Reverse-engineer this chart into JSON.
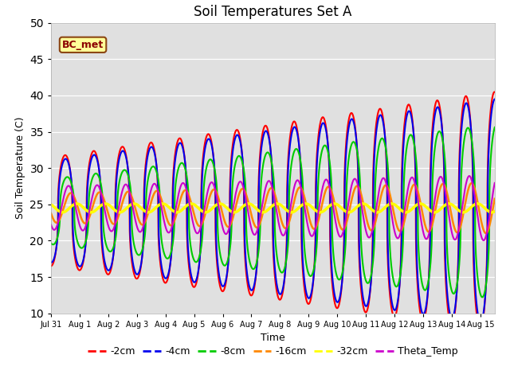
{
  "title": "Soil Temperatures Set A",
  "xlabel": "Time",
  "ylabel": "Soil Temperature (C)",
  "ylim": [
    10,
    50
  ],
  "xlim": [
    0,
    15.5
  ],
  "bg_color": "#e0e0e0",
  "annotation_text": "BC_met",
  "annotation_facecolor": "#ffff99",
  "annotation_edgecolor": "#8B4513",
  "annotation_textcolor": "#8B0000",
  "tick_labels": [
    "Jul 31",
    "Aug 1",
    "Aug 2",
    "Aug 3",
    "Aug 4",
    "Aug 5",
    "Aug 6",
    "Aug 7",
    "Aug 8",
    "Aug 9",
    "Aug 10",
    "Aug 11",
    "Aug 12",
    "Aug 13",
    "Aug 14",
    "Aug 15"
  ],
  "tick_positions": [
    0,
    1,
    2,
    3,
    4,
    5,
    6,
    7,
    8,
    9,
    10,
    11,
    12,
    13,
    14,
    15
  ],
  "series": [
    {
      "label": "-2cm",
      "color": "#ff0000",
      "lw": 1.5
    },
    {
      "label": "-4cm",
      "color": "#0000ee",
      "lw": 1.5
    },
    {
      "label": "-8cm",
      "color": "#00cc00",
      "lw": 1.5
    },
    {
      "label": "-16cm",
      "color": "#ff8800",
      "lw": 1.8
    },
    {
      "label": "-32cm",
      "color": "#ffff00",
      "lw": 2.5
    },
    {
      "label": "Theta_Temp",
      "color": "#cc00cc",
      "lw": 1.5
    }
  ],
  "yticks": [
    10,
    15,
    20,
    25,
    30,
    35,
    40,
    45,
    50
  ]
}
